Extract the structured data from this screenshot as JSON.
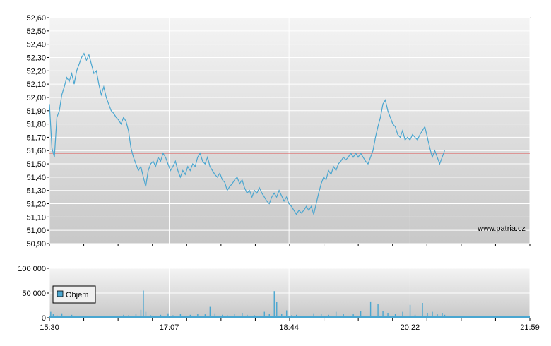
{
  "watermark": "www.patria.cz",
  "colors": {
    "price_line": "#4aa6d0",
    "reference_line": "#e05050",
    "volume_bars": "#4aa6d0",
    "grid": "#ffffff",
    "plot_bg_top": "#f4f4f4",
    "plot_bg_bottom": "#c8c8c8"
  },
  "chart_data": [
    {
      "type": "line",
      "grid": true,
      "ylim": [
        50.9,
        52.6
      ],
      "yticks": [
        "52,60",
        "52,50",
        "52,40",
        "52,30",
        "52,20",
        "52,10",
        "52,00",
        "51,90",
        "51,80",
        "51,70",
        "51,60",
        "51,50",
        "51,40",
        "51,30",
        "51,20",
        "51,10",
        "51,00",
        "50,90"
      ],
      "xlim_minutes": [
        930,
        1319
      ],
      "reference_value": 51.58,
      "series": [
        {
          "points": [
            [
              930,
              51.95
            ],
            [
              932,
              51.62
            ],
            [
              934,
              51.55
            ],
            [
              936,
              51.85
            ],
            [
              938,
              51.9
            ],
            [
              940,
              52.02
            ],
            [
              942,
              52.08
            ],
            [
              944,
              52.15
            ],
            [
              946,
              52.12
            ],
            [
              948,
              52.18
            ],
            [
              950,
              52.1
            ],
            [
              952,
              52.2
            ],
            [
              954,
              52.25
            ],
            [
              956,
              52.3
            ],
            [
              958,
              52.33
            ],
            [
              960,
              52.28
            ],
            [
              962,
              52.32
            ],
            [
              964,
              52.25
            ],
            [
              966,
              52.18
            ],
            [
              968,
              52.2
            ],
            [
              970,
              52.1
            ],
            [
              972,
              52.02
            ],
            [
              974,
              52.08
            ],
            [
              976,
              52.0
            ],
            [
              978,
              51.95
            ],
            [
              980,
              51.9
            ],
            [
              982,
              51.88
            ],
            [
              984,
              51.85
            ],
            [
              986,
              51.83
            ],
            [
              988,
              51.8
            ],
            [
              990,
              51.85
            ],
            [
              992,
              51.82
            ],
            [
              994,
              51.75
            ],
            [
              996,
              51.62
            ],
            [
              998,
              51.55
            ],
            [
              1000,
              51.5
            ],
            [
              1002,
              51.45
            ],
            [
              1004,
              51.48
            ],
            [
              1006,
              51.4
            ],
            [
              1008,
              51.33
            ],
            [
              1010,
              51.45
            ],
            [
              1012,
              51.5
            ],
            [
              1014,
              51.52
            ],
            [
              1016,
              51.48
            ],
            [
              1018,
              51.55
            ],
            [
              1020,
              51.52
            ],
            [
              1022,
              51.58
            ],
            [
              1024,
              51.55
            ],
            [
              1026,
              51.5
            ],
            [
              1028,
              51.45
            ],
            [
              1030,
              51.48
            ],
            [
              1032,
              51.52
            ],
            [
              1034,
              51.45
            ],
            [
              1036,
              51.4
            ],
            [
              1038,
              51.45
            ],
            [
              1040,
              51.42
            ],
            [
              1042,
              51.48
            ],
            [
              1044,
              51.45
            ],
            [
              1046,
              51.5
            ],
            [
              1048,
              51.48
            ],
            [
              1050,
              51.55
            ],
            [
              1052,
              51.58
            ],
            [
              1054,
              51.52
            ],
            [
              1056,
              51.5
            ],
            [
              1058,
              51.55
            ],
            [
              1060,
              51.48
            ],
            [
              1062,
              51.45
            ],
            [
              1064,
              51.42
            ],
            [
              1066,
              51.4
            ],
            [
              1068,
              51.43
            ],
            [
              1070,
              51.38
            ],
            [
              1072,
              51.36
            ],
            [
              1074,
              51.3
            ],
            [
              1076,
              51.33
            ],
            [
              1078,
              51.35
            ],
            [
              1080,
              51.38
            ],
            [
              1082,
              51.4
            ],
            [
              1084,
              51.35
            ],
            [
              1086,
              51.38
            ],
            [
              1088,
              51.32
            ],
            [
              1090,
              51.28
            ],
            [
              1092,
              51.3
            ],
            [
              1094,
              51.25
            ],
            [
              1096,
              51.3
            ],
            [
              1098,
              51.28
            ],
            [
              1100,
              51.32
            ],
            [
              1102,
              51.28
            ],
            [
              1104,
              51.25
            ],
            [
              1106,
              51.22
            ],
            [
              1108,
              51.2
            ],
            [
              1110,
              51.25
            ],
            [
              1112,
              51.28
            ],
            [
              1114,
              51.25
            ],
            [
              1116,
              51.3
            ],
            [
              1118,
              51.26
            ],
            [
              1120,
              51.22
            ],
            [
              1122,
              51.25
            ],
            [
              1124,
              51.2
            ],
            [
              1126,
              51.18
            ],
            [
              1128,
              51.15
            ],
            [
              1130,
              51.12
            ],
            [
              1132,
              51.15
            ],
            [
              1134,
              51.13
            ],
            [
              1136,
              51.15
            ],
            [
              1138,
              51.18
            ],
            [
              1140,
              51.15
            ],
            [
              1142,
              51.18
            ],
            [
              1144,
              51.12
            ],
            [
              1146,
              51.2
            ],
            [
              1148,
              51.28
            ],
            [
              1150,
              51.35
            ],
            [
              1152,
              51.4
            ],
            [
              1154,
              51.38
            ],
            [
              1156,
              51.45
            ],
            [
              1158,
              51.42
            ],
            [
              1160,
              51.48
            ],
            [
              1162,
              51.45
            ],
            [
              1164,
              51.5
            ],
            [
              1166,
              51.52
            ],
            [
              1168,
              51.55
            ],
            [
              1170,
              51.53
            ],
            [
              1172,
              51.55
            ],
            [
              1174,
              51.58
            ],
            [
              1176,
              51.55
            ],
            [
              1178,
              51.58
            ],
            [
              1180,
              51.55
            ],
            [
              1182,
              51.58
            ],
            [
              1184,
              51.55
            ],
            [
              1186,
              51.52
            ],
            [
              1188,
              51.5
            ],
            [
              1190,
              51.55
            ],
            [
              1192,
              51.6
            ],
            [
              1194,
              51.7
            ],
            [
              1196,
              51.78
            ],
            [
              1198,
              51.85
            ],
            [
              1200,
              51.95
            ],
            [
              1202,
              51.98
            ],
            [
              1204,
              51.9
            ],
            [
              1206,
              51.85
            ],
            [
              1208,
              51.8
            ],
            [
              1210,
              51.78
            ],
            [
              1212,
              51.72
            ],
            [
              1214,
              51.7
            ],
            [
              1216,
              51.75
            ],
            [
              1218,
              51.68
            ],
            [
              1220,
              51.7
            ],
            [
              1222,
              51.68
            ],
            [
              1224,
              51.72
            ],
            [
              1226,
              51.7
            ],
            [
              1228,
              51.68
            ],
            [
              1230,
              51.72
            ],
            [
              1232,
              51.75
            ],
            [
              1234,
              51.78
            ],
            [
              1236,
              51.7
            ],
            [
              1238,
              51.62
            ],
            [
              1240,
              51.55
            ],
            [
              1242,
              51.6
            ],
            [
              1244,
              51.55
            ],
            [
              1246,
              51.5
            ],
            [
              1248,
              51.55
            ],
            [
              1250,
              51.6
            ]
          ]
        }
      ]
    },
    {
      "type": "bar",
      "grid": true,
      "ylim": [
        0,
        100000
      ],
      "yticks": [
        "100 000",
        "50 000",
        "0"
      ],
      "xticks": [
        "15:30",
        "17:07",
        "18:44",
        "20:22",
        "21:59"
      ],
      "legend": "Objem",
      "legend_position": "left",
      "bars": [
        [
          931,
          12000
        ],
        [
          933,
          8000
        ],
        [
          936,
          5000
        ],
        [
          940,
          9000
        ],
        [
          944,
          4000
        ],
        [
          948,
          6000
        ],
        [
          954,
          3000
        ],
        [
          962,
          4000
        ],
        [
          972,
          3000
        ],
        [
          986,
          4000
        ],
        [
          990,
          6000
        ],
        [
          994,
          5000
        ],
        [
          1000,
          7000
        ],
        [
          1004,
          16000
        ],
        [
          1006,
          55000
        ],
        [
          1008,
          12000
        ],
        [
          1012,
          5000
        ],
        [
          1020,
          6000
        ],
        [
          1026,
          9000
        ],
        [
          1030,
          5000
        ],
        [
          1036,
          8000
        ],
        [
          1044,
          6000
        ],
        [
          1050,
          8000
        ],
        [
          1056,
          7000
        ],
        [
          1060,
          22000
        ],
        [
          1064,
          9000
        ],
        [
          1070,
          6000
        ],
        [
          1074,
          5000
        ],
        [
          1080,
          8000
        ],
        [
          1086,
          10000
        ],
        [
          1090,
          6000
        ],
        [
          1096,
          5000
        ],
        [
          1104,
          12000
        ],
        [
          1108,
          8000
        ],
        [
          1112,
          54000
        ],
        [
          1114,
          32000
        ],
        [
          1118,
          8000
        ],
        [
          1122,
          15000
        ],
        [
          1126,
          5000
        ],
        [
          1130,
          6000
        ],
        [
          1136,
          4000
        ],
        [
          1144,
          9000
        ],
        [
          1150,
          8000
        ],
        [
          1156,
          6000
        ],
        [
          1162,
          12000
        ],
        [
          1168,
          8000
        ],
        [
          1176,
          7000
        ],
        [
          1182,
          14000
        ],
        [
          1186,
          4000
        ],
        [
          1190,
          33000
        ],
        [
          1196,
          28000
        ],
        [
          1200,
          14000
        ],
        [
          1204,
          10000
        ],
        [
          1210,
          8000
        ],
        [
          1216,
          12000
        ],
        [
          1222,
          26000
        ],
        [
          1226,
          6000
        ],
        [
          1232,
          30000
        ],
        [
          1236,
          10000
        ],
        [
          1240,
          12000
        ],
        [
          1244,
          7000
        ],
        [
          1248,
          10000
        ],
        [
          1250,
          6000
        ]
      ]
    }
  ]
}
